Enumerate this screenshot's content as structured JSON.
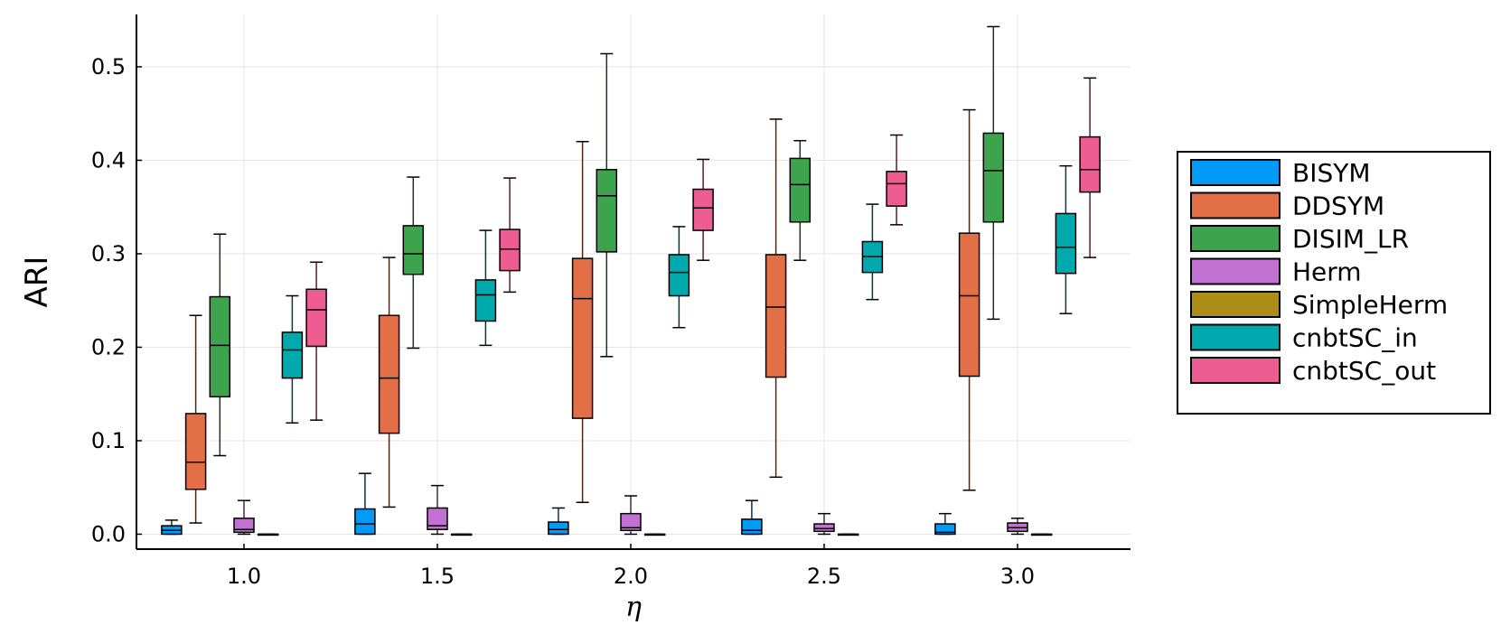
{
  "chart_data": {
    "type": "boxplot",
    "xlabel": "η",
    "ylabel": "ARI",
    "categories": [
      "1.0",
      "1.5",
      "2.0",
      "2.5",
      "3.0"
    ],
    "ylim": [
      -0.016,
      0.556
    ],
    "yticks": [
      "0.0",
      "0.1",
      "0.2",
      "0.3",
      "0.4",
      "0.5"
    ],
    "grid": true,
    "legend_position": "right",
    "series": [
      {
        "name": "BISYM",
        "color": "#009af9",
        "boxes": [
          {
            "whisker_low": 0.0,
            "q1": 0.0,
            "median": 0.004,
            "q3": 0.009,
            "whisker_high": 0.015
          },
          {
            "whisker_low": 0.0,
            "q1": 0.0,
            "median": 0.011,
            "q3": 0.027,
            "whisker_high": 0.065
          },
          {
            "whisker_low": 0.0,
            "q1": 0.0,
            "median": 0.005,
            "q3": 0.013,
            "whisker_high": 0.028
          },
          {
            "whisker_low": 0.0,
            "q1": 0.0,
            "median": 0.004,
            "q3": 0.016,
            "whisker_high": 0.036
          },
          {
            "whisker_low": 0.0,
            "q1": 0.0,
            "median": 0.002,
            "q3": 0.011,
            "whisker_high": 0.022
          }
        ]
      },
      {
        "name": "DDSYM",
        "color": "#e26f46",
        "boxes": [
          {
            "whisker_low": 0.012,
            "q1": 0.048,
            "median": 0.077,
            "q3": 0.129,
            "whisker_high": 0.234
          },
          {
            "whisker_low": 0.029,
            "q1": 0.108,
            "median": 0.167,
            "q3": 0.234,
            "whisker_high": 0.296
          },
          {
            "whisker_low": 0.034,
            "q1": 0.124,
            "median": 0.252,
            "q3": 0.295,
            "whisker_high": 0.42
          },
          {
            "whisker_low": 0.061,
            "q1": 0.168,
            "median": 0.243,
            "q3": 0.299,
            "whisker_high": 0.444
          },
          {
            "whisker_low": 0.047,
            "q1": 0.169,
            "median": 0.255,
            "q3": 0.322,
            "whisker_high": 0.454
          }
        ]
      },
      {
        "name": "DISIM_LR",
        "color": "#3da44d",
        "boxes": [
          {
            "whisker_low": 0.084,
            "q1": 0.147,
            "median": 0.202,
            "q3": 0.254,
            "whisker_high": 0.321
          },
          {
            "whisker_low": 0.199,
            "q1": 0.278,
            "median": 0.3,
            "q3": 0.33,
            "whisker_high": 0.382
          },
          {
            "whisker_low": 0.19,
            "q1": 0.302,
            "median": 0.362,
            "q3": 0.39,
            "whisker_high": 0.514
          },
          {
            "whisker_low": 0.293,
            "q1": 0.334,
            "median": 0.374,
            "q3": 0.402,
            "whisker_high": 0.421
          },
          {
            "whisker_low": 0.23,
            "q1": 0.334,
            "median": 0.389,
            "q3": 0.429,
            "whisker_high": 0.543
          }
        ]
      },
      {
        "name": "Herm",
        "color": "#c271d2",
        "boxes": [
          {
            "whisker_low": 0.0,
            "q1": 0.002,
            "median": 0.005,
            "q3": 0.017,
            "whisker_high": 0.036
          },
          {
            "whisker_low": 0.0,
            "q1": 0.005,
            "median": 0.009,
            "q3": 0.028,
            "whisker_high": 0.052
          },
          {
            "whisker_low": 0.0,
            "q1": 0.004,
            "median": 0.007,
            "q3": 0.022,
            "whisker_high": 0.041
          },
          {
            "whisker_low": 0.0,
            "q1": 0.003,
            "median": 0.006,
            "q3": 0.011,
            "whisker_high": 0.022
          },
          {
            "whisker_low": 0.0,
            "q1": 0.003,
            "median": 0.007,
            "q3": 0.012,
            "whisker_high": 0.017
          }
        ]
      },
      {
        "name": "SimpleHerm",
        "color": "#ac8d18",
        "boxes": [
          {
            "whisker_low": 0.0,
            "q1": 0.0,
            "median": 0.0,
            "q3": 0.0,
            "whisker_high": 0.0
          },
          {
            "whisker_low": 0.0,
            "q1": 0.0,
            "median": 0.0,
            "q3": 0.0,
            "whisker_high": 0.0
          },
          {
            "whisker_low": 0.0,
            "q1": 0.0,
            "median": 0.0,
            "q3": 0.0,
            "whisker_high": 0.0
          },
          {
            "whisker_low": 0.0,
            "q1": 0.0,
            "median": 0.0,
            "q3": 0.0,
            "whisker_high": 0.0
          },
          {
            "whisker_low": 0.0,
            "q1": 0.0,
            "median": 0.0,
            "q3": 0.0,
            "whisker_high": 0.0
          }
        ]
      },
      {
        "name": "cnbtSC_in",
        "color": "#00a9ad",
        "boxes": [
          {
            "whisker_low": 0.119,
            "q1": 0.167,
            "median": 0.197,
            "q3": 0.216,
            "whisker_high": 0.255
          },
          {
            "whisker_low": 0.202,
            "q1": 0.228,
            "median": 0.256,
            "q3": 0.272,
            "whisker_high": 0.325
          },
          {
            "whisker_low": 0.221,
            "q1": 0.255,
            "median": 0.28,
            "q3": 0.299,
            "whisker_high": 0.329
          },
          {
            "whisker_low": 0.251,
            "q1": 0.28,
            "median": 0.297,
            "q3": 0.313,
            "whisker_high": 0.353
          },
          {
            "whisker_low": 0.236,
            "q1": 0.279,
            "median": 0.307,
            "q3": 0.343,
            "whisker_high": 0.394
          }
        ]
      },
      {
        "name": "cnbtSC_out",
        "color": "#ed5d92",
        "boxes": [
          {
            "whisker_low": 0.122,
            "q1": 0.201,
            "median": 0.24,
            "q3": 0.262,
            "whisker_high": 0.291
          },
          {
            "whisker_low": 0.259,
            "q1": 0.282,
            "median": 0.305,
            "q3": 0.326,
            "whisker_high": 0.381
          },
          {
            "whisker_low": 0.293,
            "q1": 0.325,
            "median": 0.349,
            "q3": 0.369,
            "whisker_high": 0.401
          },
          {
            "whisker_low": 0.331,
            "q1": 0.351,
            "median": 0.375,
            "q3": 0.388,
            "whisker_high": 0.427
          },
          {
            "whisker_low": 0.296,
            "q1": 0.366,
            "median": 0.39,
            "q3": 0.425,
            "whisker_high": 0.488
          }
        ]
      }
    ]
  }
}
